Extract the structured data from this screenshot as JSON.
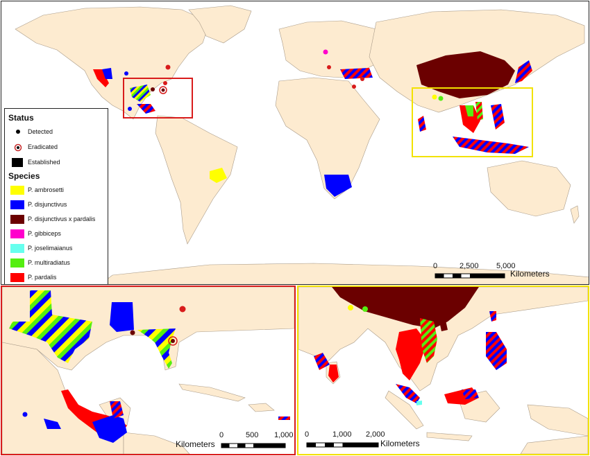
{
  "legend": {
    "status_heading": "Status",
    "status_items": [
      {
        "label": "Detected",
        "symbol": "dot",
        "color": "#000000"
      },
      {
        "label": "Eradicated",
        "symbol": "ringed-dot",
        "color": "#c62828"
      },
      {
        "label": "Established",
        "symbol": "square",
        "color": "#000000"
      }
    ],
    "species_heading": "Species",
    "species_items": [
      {
        "label": "P. ambrosetti",
        "color": "#ffff00"
      },
      {
        "label": "P. disjunctivus",
        "color": "#0000ff"
      },
      {
        "label": "P. disjunctivus x pardalis",
        "color": "#6b0000"
      },
      {
        "label": "P. gibbiceps",
        "color": "#ff00cc"
      },
      {
        "label": "P. joselimaianus",
        "color": "#66ffee"
      },
      {
        "label": "P. multiradiatus",
        "color": "#55ee11"
      },
      {
        "label": "P. pardalis",
        "color": "#ff0000"
      }
    ]
  },
  "world_scale": {
    "ticks": [
      "0",
      "2,500",
      "5,000"
    ],
    "unit": "Kilometers"
  },
  "gulf_scale": {
    "unit": "Kilometers",
    "ticks": [
      "0",
      "500",
      "1,000"
    ]
  },
  "asia_scale": {
    "ticks": [
      "0",
      "1,000",
      "2,000"
    ],
    "unit": "Kilometers"
  },
  "colors": {
    "land": "#fdebd0",
    "ocean": "#ffffff",
    "gulf_frame": "#d81b1b",
    "asia_frame": "#f2e200",
    "border": "#a89a88"
  }
}
